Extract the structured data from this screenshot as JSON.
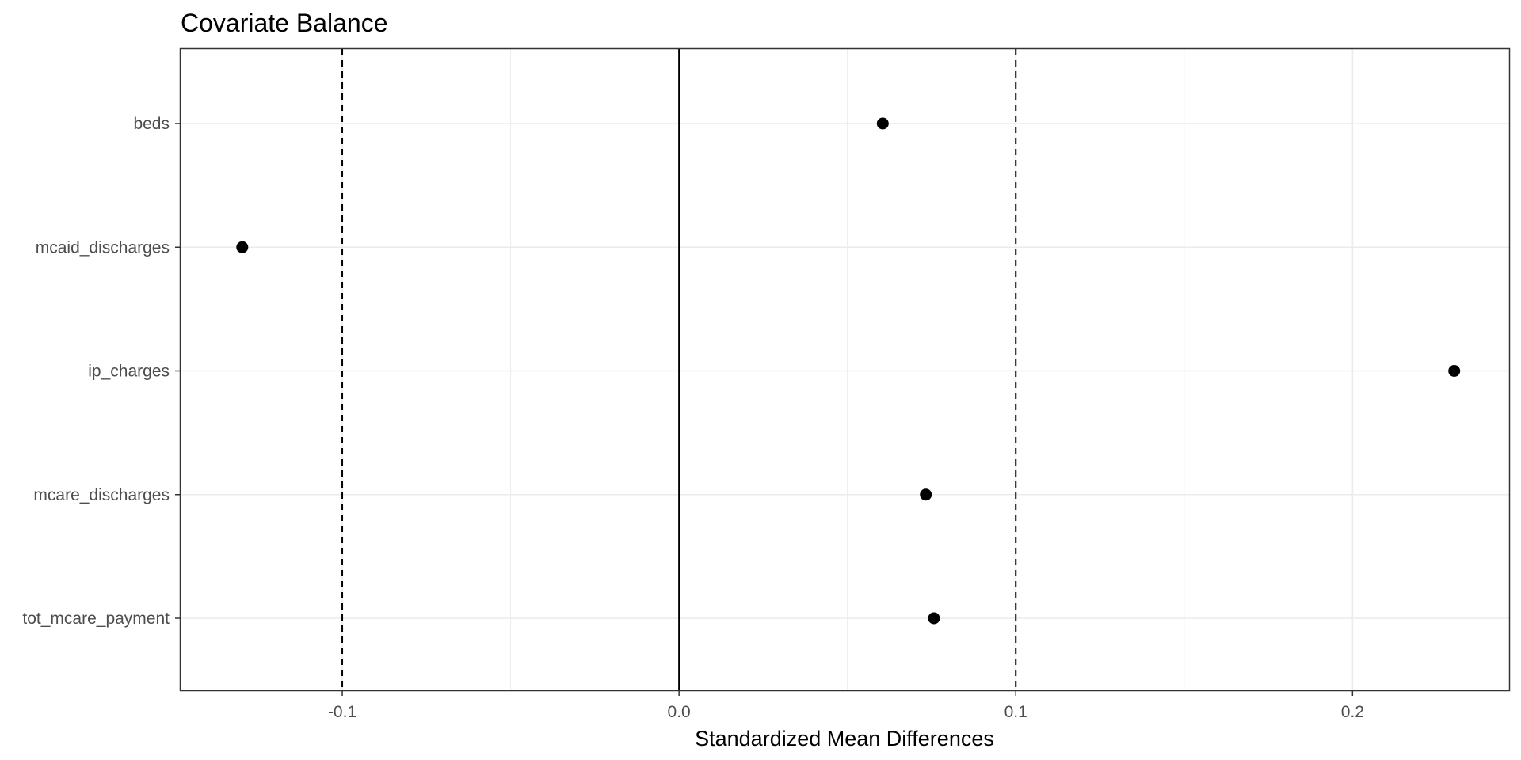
{
  "chart_data": {
    "type": "scatter",
    "title": "Covariate Balance",
    "xlabel": "Standardized Mean Differences",
    "ylabel": "",
    "xlim": [
      -0.148,
      0.2465
    ],
    "x_ticks": [
      -0.1,
      0.0,
      0.1,
      0.2
    ],
    "x_tick_labels": [
      "-0.1",
      "0.0",
      "0.1",
      "0.2"
    ],
    "x_minor_grid": [
      -0.05,
      0.05,
      0.15
    ],
    "categories": [
      "beds",
      "mcaid_discharges",
      "ip_charges",
      "mcare_discharges",
      "tot_mcare_payment"
    ],
    "values": [
      0.0605,
      -0.1297,
      0.2302,
      0.0733,
      0.0757
    ],
    "threshold_lines": [
      -0.1,
      0.1
    ],
    "zero_line": 0,
    "grid": true,
    "legend": "none",
    "colors": {
      "point": "#000000",
      "grid": "#ebebeb",
      "panel_border": "#333333",
      "tick_label": "#4d4d4d",
      "reference_line": "#000000"
    }
  }
}
